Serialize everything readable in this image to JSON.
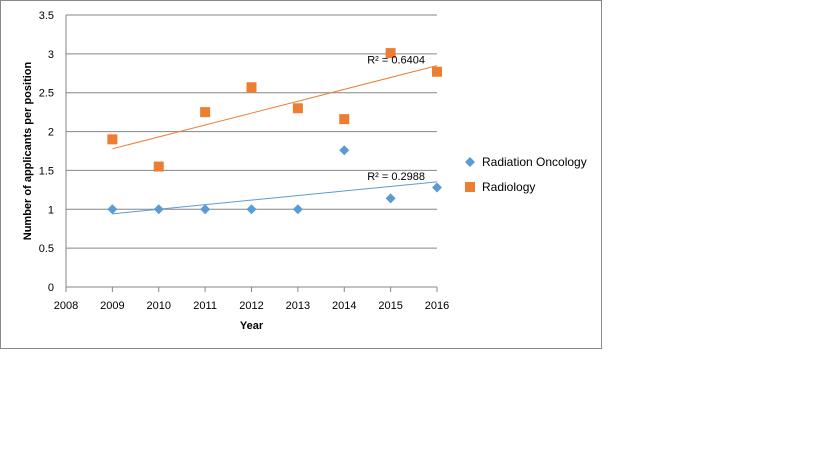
{
  "chart_data": {
    "type": "scatter",
    "title": "",
    "xlabel": "Year",
    "ylabel": "Number of applicants per position",
    "xlim": [
      2008,
      2016
    ],
    "ylim": [
      0,
      3.5
    ],
    "x_ticks": [
      "2008",
      "2009",
      "2010",
      "2011",
      "2012",
      "2013",
      "2014",
      "2015",
      "2016"
    ],
    "y_ticks": [
      "0",
      "0.5",
      "1",
      "1.5",
      "2",
      "2.5",
      "3",
      "3.5"
    ],
    "grid": true,
    "legend_position": "right",
    "series": [
      {
        "name": "Radiation Oncology",
        "marker": "diamond",
        "color": "#5B9BD5",
        "x": [
          2009,
          2010,
          2011,
          2012,
          2013,
          2014,
          2015,
          2016
        ],
        "y": [
          1.0,
          1.0,
          1.0,
          1.0,
          1.0,
          1.76,
          1.14,
          1.28
        ],
        "trendline": {
          "type": "linear",
          "r2_label": "R² = 0.2988"
        }
      },
      {
        "name": "Radiology",
        "marker": "square",
        "color": "#ED7D31",
        "x": [
          2009,
          2010,
          2011,
          2012,
          2013,
          2014,
          2015,
          2016
        ],
        "y": [
          1.9,
          1.55,
          2.25,
          2.57,
          2.3,
          2.16,
          3.01,
          2.77
        ],
        "trendline": {
          "type": "linear",
          "r2_label": "R² = 0.6404"
        }
      }
    ]
  }
}
